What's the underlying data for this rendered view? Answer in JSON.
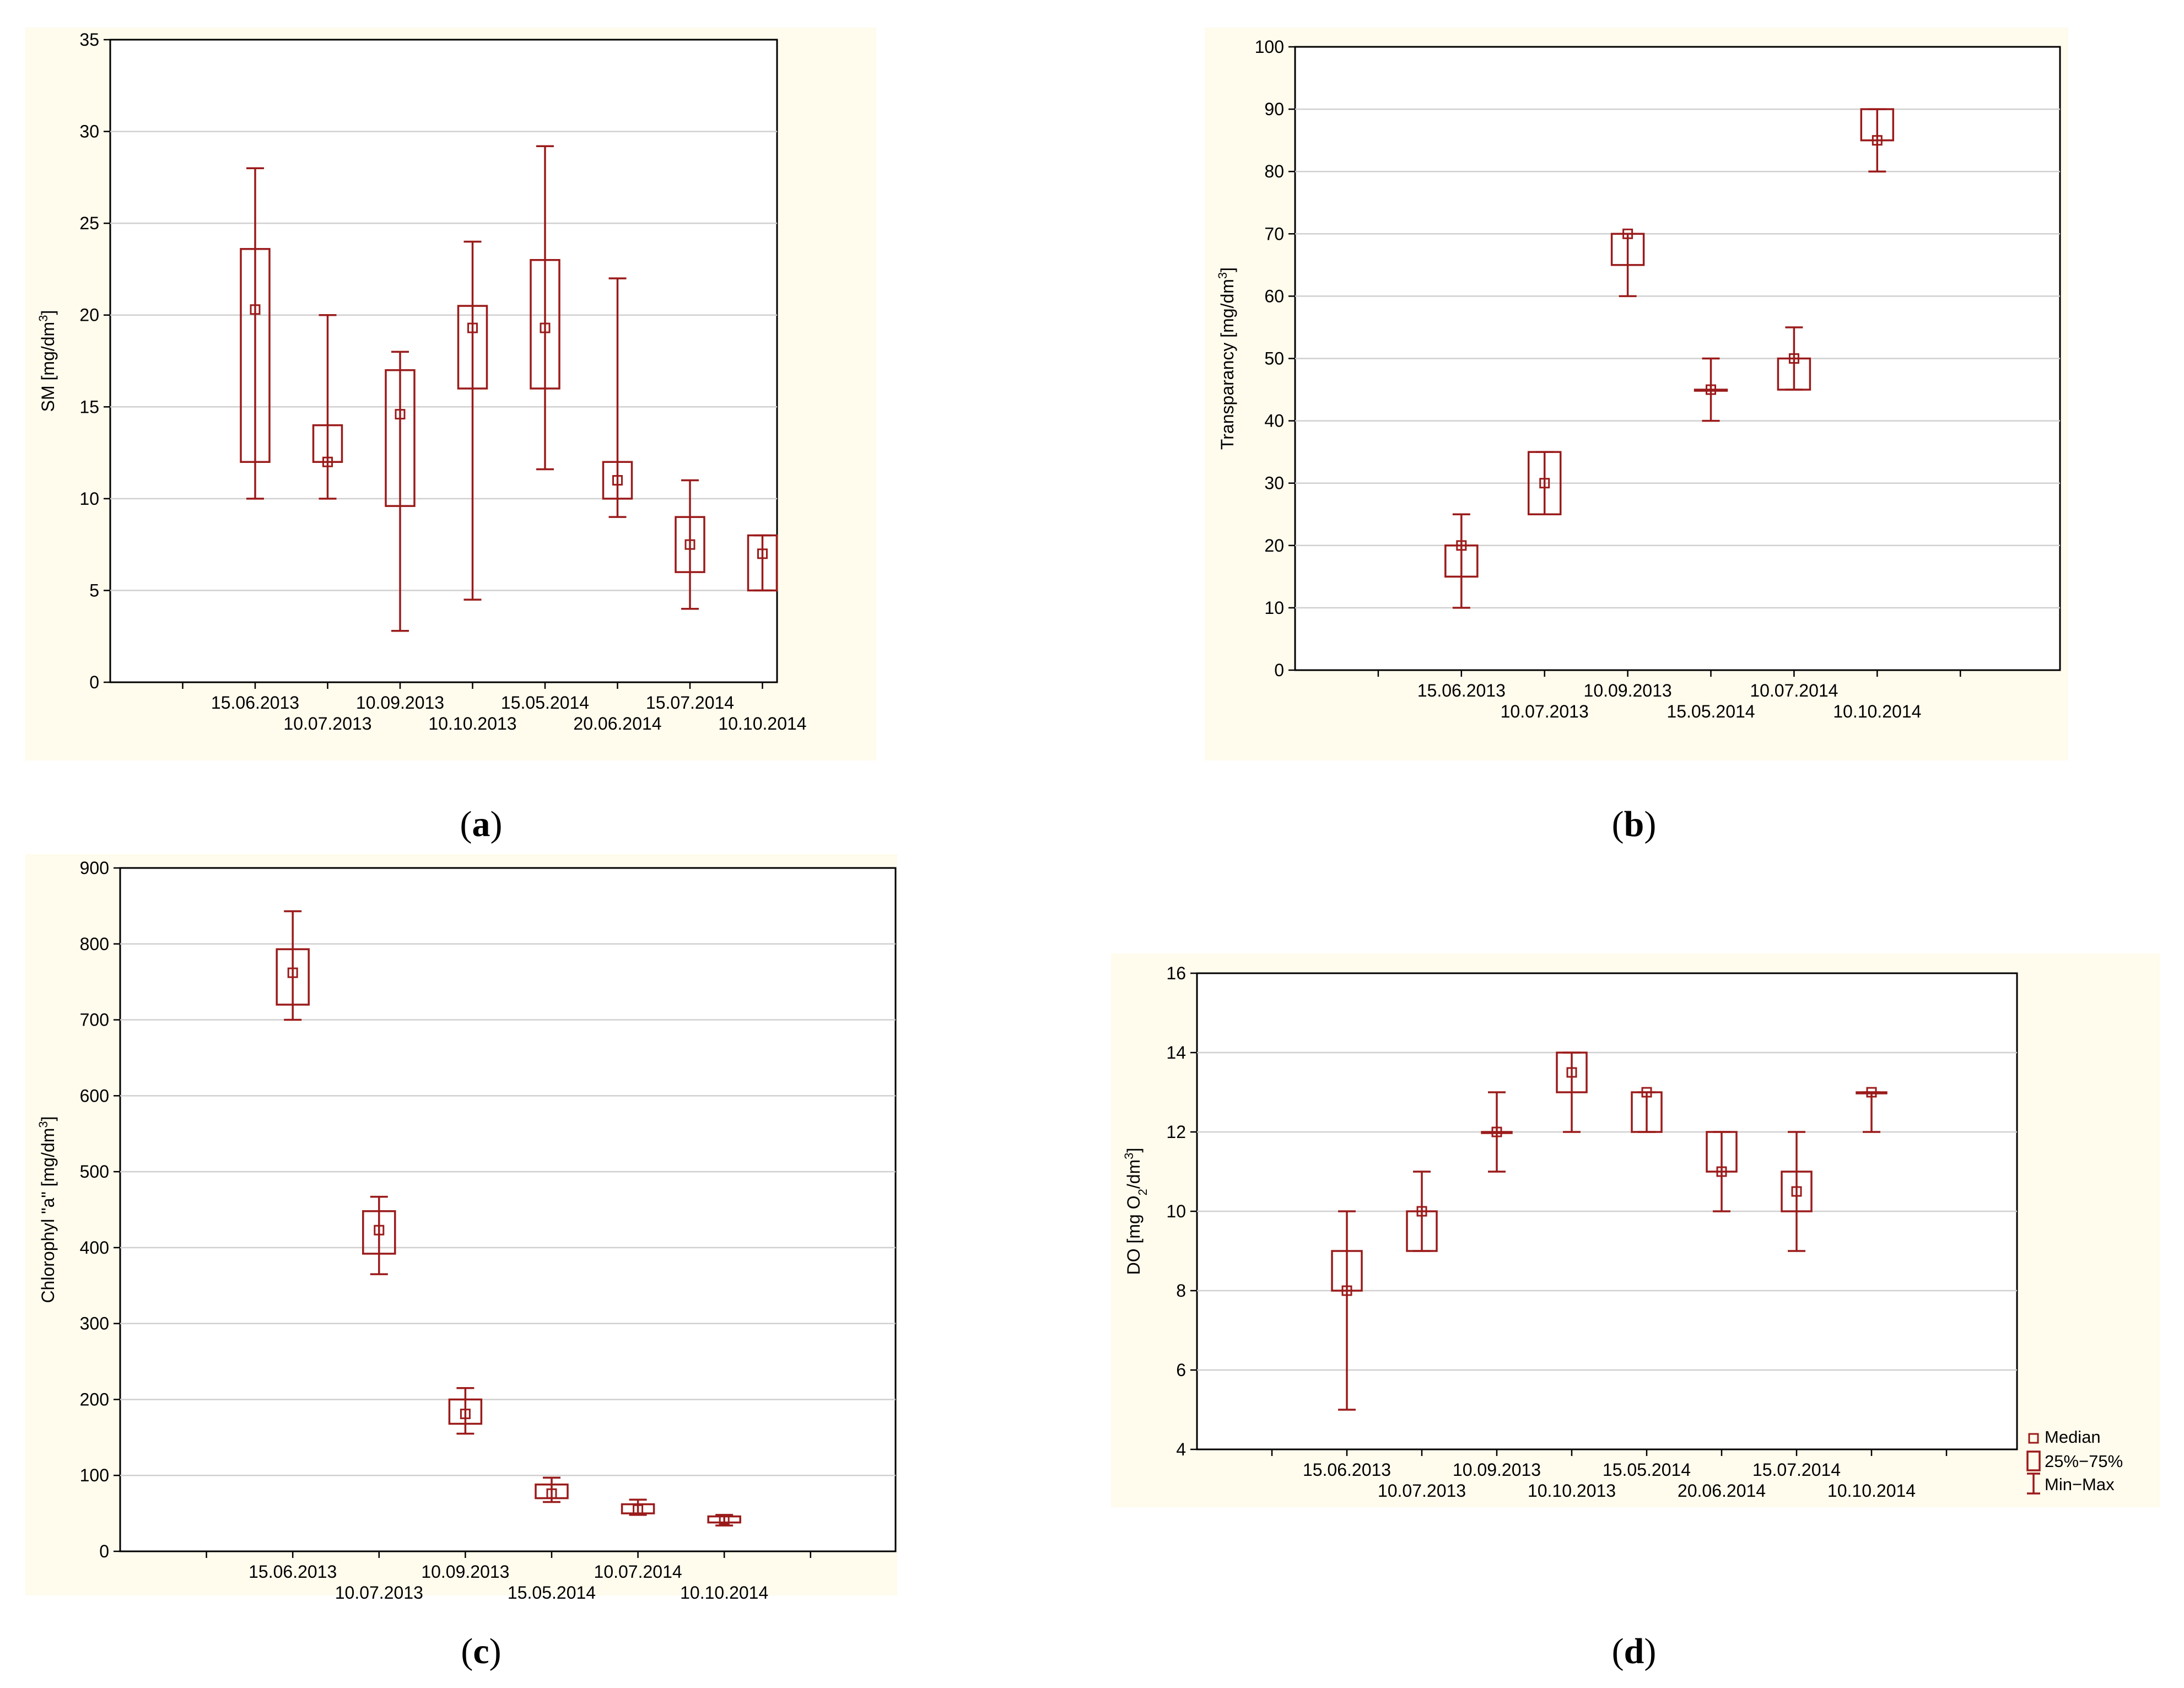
{
  "colors": {
    "series": "#9b1b1b",
    "panel_background": "#fffbed"
  },
  "legend": {
    "median_label": "Median",
    "box_label": "25%−75%",
    "whisker_label": "Min−Max"
  },
  "chart_data": [
    {
      "id": "a",
      "type": "boxplot",
      "caption_letter": "a",
      "ylabel_prefix": "SM [mg/dm",
      "ylabel_sup": "3",
      "ylabel_suffix": "]",
      "ylim": [
        0,
        35
      ],
      "yticks": [
        0,
        5,
        10,
        15,
        20,
        25,
        30,
        35
      ],
      "grid": true,
      "boxes": [
        {
          "label": "15.06.2013",
          "min": 10,
          "q1": 12,
          "median": 20.3,
          "q3": 23.6,
          "max": 28
        },
        {
          "label": "10.07.2013",
          "min": 10,
          "q1": 12,
          "median": 12,
          "q3": 14,
          "max": 20
        },
        {
          "label": "10.09.2013",
          "min": 2.8,
          "q1": 9.6,
          "median": 14.6,
          "q3": 17,
          "max": 18
        },
        {
          "label": "10.10.2013",
          "min": 4.5,
          "q1": 16,
          "median": 19.3,
          "q3": 20.5,
          "max": 24
        },
        {
          "label": "15.05.2014",
          "min": 11.6,
          "q1": 16,
          "median": 19.3,
          "q3": 23,
          "max": 29.2
        },
        {
          "label": "20.06.2014",
          "min": 9,
          "q1": 10,
          "median": 11,
          "q3": 12,
          "max": 22
        },
        {
          "label": "15.07.2014",
          "min": 4,
          "q1": 6,
          "median": 7.5,
          "q3": 9,
          "max": 11
        },
        {
          "label": "10.10.2014",
          "min": 5,
          "q1": 5,
          "median": 7,
          "q3": 8,
          "max": 8
        }
      ]
    },
    {
      "id": "b",
      "type": "boxplot",
      "caption_letter": "b",
      "ylabel_prefix": "Transparancy [mg/dm",
      "ylabel_sup": "3",
      "ylabel_suffix": "]",
      "ylim": [
        0,
        100
      ],
      "yticks": [
        0,
        10,
        20,
        30,
        40,
        50,
        60,
        70,
        80,
        90,
        100
      ],
      "grid": true,
      "boxes": [
        {
          "label": "15.06.2013",
          "min": 10,
          "q1": 15,
          "median": 20,
          "q3": 20,
          "max": 25
        },
        {
          "label": "10.07.2013",
          "min": 25,
          "q1": 25,
          "median": 30,
          "q3": 35,
          "max": 35
        },
        {
          "label": "10.09.2013",
          "min": 60,
          "q1": 65,
          "median": 70,
          "q3": 70,
          "max": 70
        },
        {
          "label": "15.05.2014",
          "min": 40,
          "q1": 45,
          "median": 45,
          "q3": 45,
          "max": 50
        },
        {
          "label": "10.07.2014",
          "min": 45,
          "q1": 45,
          "median": 50,
          "q3": 50,
          "max": 55
        },
        {
          "label": "10.10.2014",
          "min": 80,
          "q1": 85,
          "median": 85,
          "q3": 90,
          "max": 90
        }
      ]
    },
    {
      "id": "c",
      "type": "boxplot",
      "caption_letter": "c",
      "ylabel_prefix": "Chlorophyl \"a\" [mg/dm",
      "ylabel_sup": "3",
      "ylabel_suffix": "]",
      "ylim": [
        0,
        900
      ],
      "yticks": [
        0,
        100,
        200,
        300,
        400,
        500,
        600,
        700,
        800,
        900
      ],
      "grid": true,
      "boxes": [
        {
          "label": "15.06.2013",
          "min": 700,
          "q1": 720,
          "median": 762,
          "q3": 793,
          "max": 843
        },
        {
          "label": "10.07.2013",
          "min": 365,
          "q1": 392,
          "median": 423,
          "q3": 448,
          "max": 467
        },
        {
          "label": "10.09.2013",
          "min": 155,
          "q1": 168,
          "median": 181,
          "q3": 200,
          "max": 215
        },
        {
          "label": "15.05.2014",
          "min": 65,
          "q1": 70,
          "median": 76,
          "q3": 88,
          "max": 97
        },
        {
          "label": "10.07.2014",
          "min": 48,
          "q1": 50,
          "median": 55,
          "q3": 62,
          "max": 68
        },
        {
          "label": "10.10.2014",
          "min": 34,
          "q1": 38,
          "median": 42,
          "q3": 46,
          "max": 48
        }
      ]
    },
    {
      "id": "d",
      "type": "boxplot",
      "caption_letter": "d",
      "ylabel_prefix": "DO [mg O",
      "ylabel_sub": "2",
      "ylabel_mid": "/dm",
      "ylabel_sup": "3",
      "ylabel_suffix": "]",
      "ylim": [
        4,
        16
      ],
      "yticks": [
        4,
        6,
        8,
        10,
        12,
        14,
        16
      ],
      "grid": true,
      "legend_position": "bottom-right",
      "boxes": [
        {
          "label": "15.06.2013",
          "min": 5,
          "q1": 8,
          "median": 8,
          "q3": 9,
          "max": 10
        },
        {
          "label": "10.07.2013",
          "min": 9,
          "q1": 9,
          "median": 10,
          "q3": 10,
          "max": 11
        },
        {
          "label": "10.09.2013",
          "min": 11,
          "q1": 12,
          "median": 12,
          "q3": 12,
          "max": 13
        },
        {
          "label": "10.10.2013",
          "min": 12,
          "q1": 13,
          "median": 13.5,
          "q3": 14,
          "max": 14
        },
        {
          "label": "15.05.2014",
          "min": 12,
          "q1": 12,
          "median": 13,
          "q3": 13,
          "max": 13
        },
        {
          "label": "20.06.2014",
          "min": 10,
          "q1": 11,
          "median": 11,
          "q3": 12,
          "max": 12
        },
        {
          "label": "15.07.2014",
          "min": 9,
          "q1": 10,
          "median": 10.5,
          "q3": 11,
          "max": 12
        },
        {
          "label": "10.10.2014",
          "min": 12,
          "q1": 13,
          "median": 13,
          "q3": 13,
          "max": 13
        }
      ]
    }
  ]
}
